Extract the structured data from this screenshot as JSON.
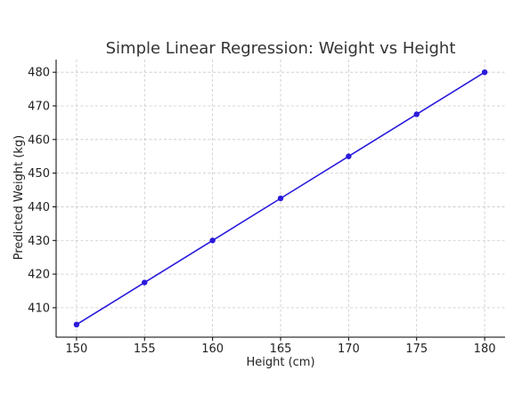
{
  "chart_data": {
    "type": "line",
    "title": "Simple Linear Regression: Weight vs Height",
    "xlabel": "Height (cm)",
    "ylabel": "Predicted Weight (kg)",
    "x": [
      150,
      155,
      160,
      165,
      170,
      175,
      180
    ],
    "series": [
      {
        "values": [
          405,
          417.5,
          430,
          442.5,
          455,
          467.5,
          480
        ],
        "color": "#2a1adb",
        "marker": "circle"
      }
    ],
    "xlim": [
      148.5,
      181.5
    ],
    "ylim": [
      401.25,
      483.75
    ],
    "xticks": [
      150,
      155,
      160,
      165,
      170,
      175,
      180
    ],
    "yticks": [
      410,
      420,
      430,
      440,
      450,
      460,
      470,
      480
    ],
    "grid": true,
    "legend": "none"
  }
}
